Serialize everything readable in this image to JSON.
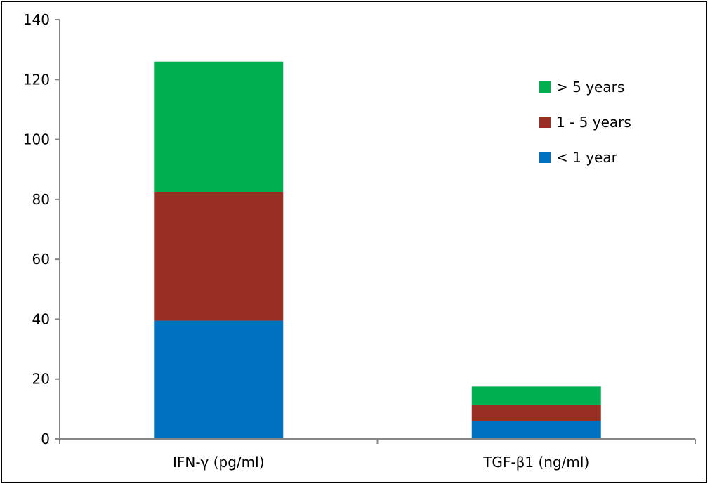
{
  "chart_data": {
    "type": "bar",
    "stacked": true,
    "categories": [
      "IFN-γ (pg/ml)",
      "TGF-β1 (ng/ml)"
    ],
    "series": [
      {
        "name": "< 1 year",
        "color": "#0070C0",
        "values": [
          39.5,
          6
        ]
      },
      {
        "name": "1 - 5 years",
        "color": "#973022",
        "values": [
          43,
          5.5
        ]
      },
      {
        "name": "> 5 years",
        "color": "#00B050",
        "values": [
          43.5,
          6
        ]
      }
    ],
    "legend_order": [
      "> 5 years",
      "1 - 5 years",
      "< 1 year"
    ],
    "legend_position": "upper-right",
    "title": "",
    "xlabel": "",
    "ylabel": "",
    "ylim": [
      0,
      140
    ],
    "yticks": [
      "0",
      "20",
      "40",
      "60",
      "80",
      "100",
      "120",
      "140"
    ],
    "grid": false
  }
}
